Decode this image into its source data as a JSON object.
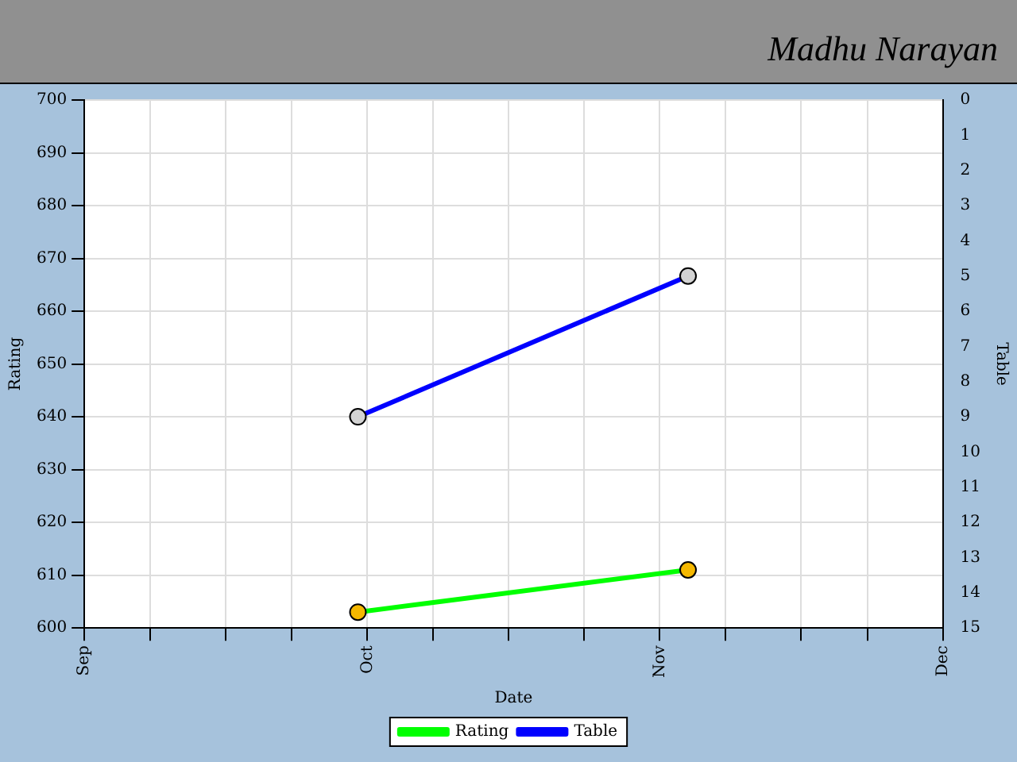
{
  "chart_data": {
    "type": "line",
    "title": "Madhu Narayan",
    "xlabel": "Date",
    "ylabel": "Rating",
    "y2label": "Table",
    "xlim": [
      "--09-01",
      "--12-01"
    ],
    "xticks": [
      {
        "value": "--09-01",
        "label": "Sep"
      },
      {
        "value": "--09-08",
        "label": null
      },
      {
        "value": "--09-16",
        "label": null
      },
      {
        "value": "--09-23",
        "label": null
      },
      {
        "value": "--10-01",
        "label": "Oct"
      },
      {
        "value": "--10-08",
        "label": null
      },
      {
        "value": "--10-16",
        "label": null
      },
      {
        "value": "--10-24",
        "label": null
      },
      {
        "value": "--11-01",
        "label": "Nov"
      },
      {
        "value": "--11-08",
        "label": null
      },
      {
        "value": "--11-16",
        "label": null
      },
      {
        "value": "--11-23",
        "label": null
      },
      {
        "value": "--12-01",
        "label": "Dec"
      }
    ],
    "ylim": [
      600,
      700
    ],
    "yticks": [
      600,
      610,
      620,
      630,
      640,
      650,
      660,
      670,
      680,
      690,
      700
    ],
    "y2lim": [
      15,
      0
    ],
    "y2ticks": [
      0,
      1,
      2,
      3,
      4,
      5,
      6,
      7,
      8,
      9,
      10,
      11,
      12,
      13,
      14,
      15
    ],
    "x": [
      "--09-30",
      "--11-04"
    ],
    "series": [
      {
        "name": "Rating",
        "color": "#00ff00",
        "values": [
          603,
          611
        ]
      },
      {
        "name": "Table",
        "color": "#0000ff",
        "values": [
          9,
          5
        ],
        "axis": "y2"
      }
    ],
    "marker": "circle",
    "line_style": "solid",
    "grid": true,
    "legend": "bottom"
  }
}
